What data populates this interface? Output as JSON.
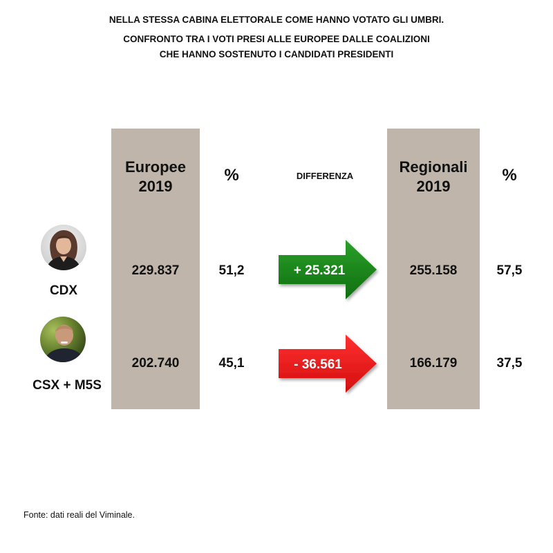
{
  "title": {
    "line1": "NELLA STESSA CABINA ELETTORALE COME HANNO VOTATO GLI UMBRI.",
    "line2": "CONFRONTO  TRA I VOTI PRESI ALLE EUROPEE DALLE COALIZIONI",
    "line3": "CHE HANNO SOSTENUTO I CANDIDATI PRESIDENTI"
  },
  "chart_data": {
    "type": "table",
    "headers": {
      "europee_line1": "Europee",
      "europee_line2": "2019",
      "pct_europee": "%",
      "differenza": "DIFFERENZA",
      "regionali_line1": "Regionali",
      "regionali_line2": "2019",
      "pct_regionali": "%"
    },
    "rows": [
      {
        "label": "CDX",
        "europee": "229.837",
        "pct_europee": "51,2",
        "differenza": "+ 25.321",
        "regionali": "255.158",
        "pct_regionali": "57,5"
      },
      {
        "label": "CSX + M5S",
        "europee": "202.740",
        "pct_europee": "45,1",
        "differenza": "- 36.561",
        "regionali": "166.179",
        "pct_regionali": "37,5"
      }
    ]
  },
  "colors": {
    "column_bg": "#bfb5aa",
    "arrow_positive": "#1a8a1a",
    "arrow_negative": "#ee1c1c"
  },
  "icons": [
    "female-candidate-avatar-icon",
    "male-candidate-avatar-icon"
  ],
  "source": "Fonte: dati reali del Viminale."
}
